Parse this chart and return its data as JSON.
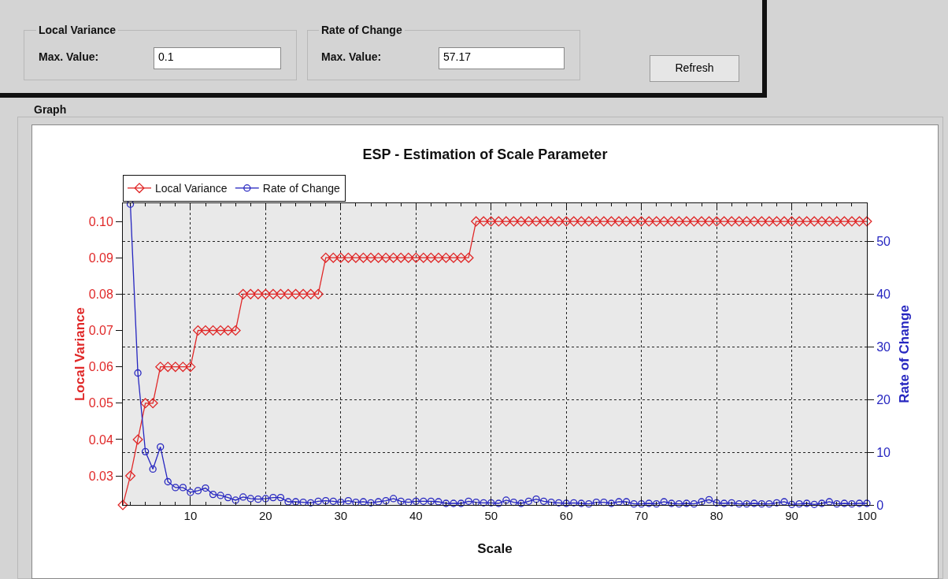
{
  "chart_data": {
    "type": "line",
    "title": "ESP - Estimation of Scale Parameter",
    "xlabel": "Scale",
    "ylabel": "Local Variance",
    "y2label": "Rate of Change",
    "annotations": [
      "Local Variance",
      "Max. Value:",
      "0.1",
      "Rate of Change",
      "Max. Value:",
      "57.17",
      "Refresh",
      "Graph"
    ],
    "xlim": [
      1,
      100
    ],
    "xticks": [
      10,
      20,
      30,
      40,
      50,
      60,
      70,
      80,
      90,
      100
    ],
    "ylim": [
      0.022,
      0.105
    ],
    "yticks": [
      {
        "value": 0.03,
        "label": "0.03"
      },
      {
        "value": 0.04,
        "label": "0.04"
      },
      {
        "value": 0.05,
        "label": "0.05"
      },
      {
        "value": 0.06,
        "label": "0.06"
      },
      {
        "value": 0.07,
        "label": "0.07"
      },
      {
        "value": 0.08,
        "label": "0.08"
      },
      {
        "value": 0.09,
        "label": "0.09"
      },
      {
        "value": 0.1,
        "label": "0.10"
      }
    ],
    "y2lim": [
      0,
      57.17
    ],
    "y2ticks": [
      0,
      10,
      20,
      30,
      40,
      50
    ],
    "grid": true,
    "legend": "top left",
    "line_style": "solid",
    "series": [
      {
        "name": "Local Variance",
        "color": "#e02828",
        "marker": "diamond",
        "x": [
          1,
          2,
          3,
          4,
          5,
          6,
          7,
          8,
          9,
          10,
          11,
          12,
          13,
          14,
          15,
          16,
          17,
          18,
          19,
          20,
          21,
          22,
          23,
          24,
          25,
          26,
          27,
          28,
          29,
          30,
          31,
          32,
          33,
          34,
          35,
          36,
          37,
          38,
          39,
          40,
          41,
          42,
          43,
          44,
          45,
          46,
          47,
          48,
          49,
          50,
          51,
          52,
          53,
          54,
          55,
          56,
          57,
          58,
          59,
          60,
          61,
          62,
          63,
          64,
          65,
          66,
          67,
          68,
          69,
          70,
          71,
          72,
          73,
          74,
          75,
          76,
          77,
          78,
          79,
          80,
          81,
          82,
          83,
          84,
          85,
          86,
          87,
          88,
          89,
          90,
          91,
          92,
          93,
          94,
          95,
          96,
          97,
          98,
          99,
          100
        ],
        "values": [
          0.022,
          0.03,
          0.04,
          0.05,
          0.05,
          0.06,
          0.06,
          0.06,
          0.06,
          0.06,
          0.07,
          0.07,
          0.07,
          0.07,
          0.07,
          0.07,
          0.08,
          0.08,
          0.08,
          0.08,
          0.08,
          0.08,
          0.08,
          0.08,
          0.08,
          0.08,
          0.08,
          0.09,
          0.09,
          0.09,
          0.09,
          0.09,
          0.09,
          0.09,
          0.09,
          0.09,
          0.09,
          0.09,
          0.09,
          0.09,
          0.09,
          0.09,
          0.09,
          0.09,
          0.09,
          0.09,
          0.09,
          0.1,
          0.1,
          0.1,
          0.1,
          0.1,
          0.1,
          0.1,
          0.1,
          0.1,
          0.1,
          0.1,
          0.1,
          0.1,
          0.1,
          0.1,
          0.1,
          0.1,
          0.1,
          0.1,
          0.1,
          0.1,
          0.1,
          0.1,
          0.1,
          0.1,
          0.1,
          0.1,
          0.1,
          0.1,
          0.1,
          0.1,
          0.1,
          0.1,
          0.1,
          0.1,
          0.1,
          0.1,
          0.1,
          0.1,
          0.1,
          0.1,
          0.1,
          0.1,
          0.1,
          0.1,
          0.1,
          0.1,
          0.1,
          0.1,
          0.1,
          0.1,
          0.1,
          0.1
        ]
      },
      {
        "name": "Rate of Change",
        "color": "#2626c0",
        "marker": "circle",
        "axis": "y2",
        "x": [
          2,
          3,
          4,
          5,
          6,
          7,
          8,
          9,
          10,
          11,
          12,
          13,
          14,
          15,
          16,
          17,
          18,
          19,
          20,
          21,
          22,
          23,
          24,
          25,
          26,
          27,
          28,
          29,
          30,
          31,
          32,
          33,
          34,
          35,
          36,
          37,
          38,
          39,
          40,
          41,
          42,
          43,
          44,
          45,
          46,
          47,
          48,
          49,
          50,
          51,
          52,
          53,
          54,
          55,
          56,
          57,
          58,
          59,
          60,
          61,
          62,
          63,
          64,
          65,
          66,
          67,
          68,
          69,
          70,
          71,
          72,
          73,
          74,
          75,
          76,
          77,
          78,
          79,
          80,
          81,
          82,
          83,
          84,
          85,
          86,
          87,
          88,
          89,
          90,
          91,
          92,
          93,
          94,
          95,
          96,
          97,
          98,
          99,
          100
        ],
        "values": [
          57,
          25,
          10.1,
          6.8,
          11,
          4.4,
          3.3,
          3.3,
          2.4,
          2.7,
          3.2,
          2.0,
          1.8,
          1.4,
          0.9,
          1.5,
          1.2,
          1.1,
          1.2,
          1.4,
          1.4,
          0.6,
          0.6,
          0.5,
          0.4,
          0.7,
          0.8,
          0.7,
          0.5,
          0.8,
          0.5,
          0.6,
          0.4,
          0.6,
          0.8,
          1.2,
          0.7,
          0.5,
          0.7,
          0.7,
          0.7,
          0.6,
          0.3,
          0.3,
          0.3,
          0.7,
          0.5,
          0.4,
          0.4,
          0.3,
          0.9,
          0.5,
          0.3,
          0.7,
          1.1,
          0.7,
          0.5,
          0.4,
          0.3,
          0.4,
          0.3,
          0.2,
          0.5,
          0.5,
          0.3,
          0.6,
          0.6,
          0.2,
          0.2,
          0.3,
          0.2,
          0.6,
          0.3,
          0.2,
          0.3,
          0.2,
          0.6,
          1.0,
          0.4,
          0.3,
          0.4,
          0.2,
          0.2,
          0.3,
          0.2,
          0.2,
          0.4,
          0.6,
          0.1,
          0.2,
          0.3,
          0.1,
          0.3,
          0.6,
          0.2,
          0.3,
          0.2,
          0.3,
          0.3
        ]
      }
    ]
  }
}
